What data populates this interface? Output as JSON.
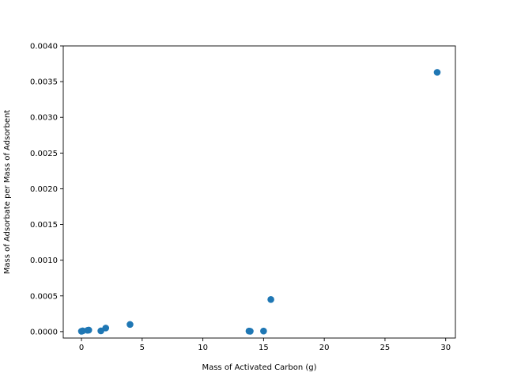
{
  "chart_data": {
    "type": "scatter",
    "title": "",
    "xlabel": "Mass of Activated Carbon (g)",
    "ylabel": "Mass of Adsorbate per Mass of Adsorbent",
    "xlim": [
      -1.5,
      30.8
    ],
    "ylim": [
      -9e-05,
      0.004
    ],
    "xticks": [
      0,
      5,
      10,
      15,
      20,
      25,
      30
    ],
    "xtick_labels": [
      "0",
      "5",
      "10",
      "15",
      "20",
      "25",
      "30"
    ],
    "yticks": [
      0.0,
      0.0005,
      0.001,
      0.0015,
      0.002,
      0.0025,
      0.003,
      0.0035,
      0.004
    ],
    "ytick_labels": [
      "0.0000",
      "0.0005",
      "0.0010",
      "0.0015",
      "0.0020",
      "0.0025",
      "0.0030",
      "0.0035",
      "0.0040"
    ],
    "grid": false,
    "series": [
      {
        "color": "#1f77b4",
        "x": [
          0.0,
          0.1,
          0.5,
          0.6,
          1.6,
          2.0,
          4.0,
          13.8,
          13.9,
          15.0,
          15.6,
          29.3
        ],
        "y": [
          5e-06,
          1e-05,
          1.8e-05,
          2.2e-05,
          1e-05,
          5e-05,
          0.0001,
          8e-06,
          5e-06,
          8e-06,
          0.00045,
          0.00363
        ]
      }
    ]
  }
}
